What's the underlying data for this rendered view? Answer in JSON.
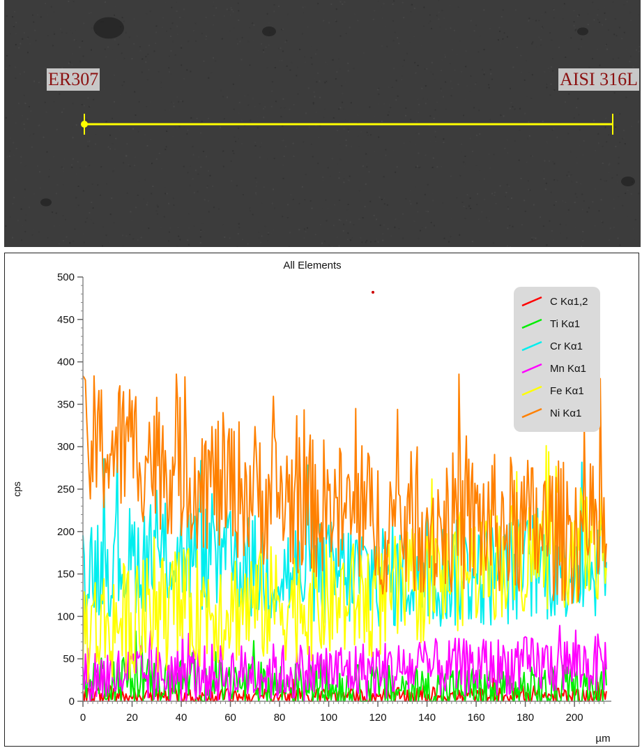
{
  "sem_image": {
    "left_label": "ER307",
    "right_label": "AISI 316L",
    "scan_line_color": "#ffff00"
  },
  "chart_data": {
    "type": "line",
    "title": "All Elements",
    "xlabel": "µm",
    "ylabel": "cps",
    "xlim": [
      0,
      215
    ],
    "ylim": [
      0,
      500
    ],
    "x_ticks": [
      0,
      20,
      40,
      60,
      80,
      100,
      120,
      140,
      160,
      180,
      200
    ],
    "y_ticks": [
      0,
      50,
      100,
      150,
      200,
      250,
      300,
      350,
      400,
      450,
      500
    ],
    "legend_position": "top-right",
    "grid": false,
    "x_step": 0.5,
    "series": [
      {
        "name": "C Kα1,2",
        "color": "#ff0000",
        "baseline": [
          [
            0,
            6
          ],
          [
            215,
            6
          ]
        ],
        "amplitude": 10
      },
      {
        "name": "Ti Kα1",
        "color": "#00ee00",
        "baseline": [
          [
            0,
            30
          ],
          [
            60,
            20
          ],
          [
            120,
            15
          ],
          [
            215,
            12
          ]
        ],
        "amplitude": 28
      },
      {
        "name": "Cr Kα1",
        "color": "#00eeee",
        "baseline": [
          [
            0,
            160
          ],
          [
            40,
            175
          ],
          [
            80,
            150
          ],
          [
            120,
            150
          ],
          [
            160,
            150
          ],
          [
            215,
            165
          ]
        ],
        "amplitude": 65
      },
      {
        "name": "Mn Kα1",
        "color": "#ff00ff",
        "baseline": [
          [
            0,
            30
          ],
          [
            100,
            35
          ],
          [
            215,
            45
          ]
        ],
        "amplitude": 35
      },
      {
        "name": "Fe Kα1",
        "color": "#ffff00",
        "baseline": [
          [
            0,
            85
          ],
          [
            40,
            110
          ],
          [
            80,
            115
          ],
          [
            120,
            120
          ],
          [
            160,
            160
          ],
          [
            215,
            190
          ]
        ],
        "amplitude": 70
      },
      {
        "name": "Ni Kα1",
        "color": "#ff8000",
        "baseline": [
          [
            0,
            300
          ],
          [
            20,
            300
          ],
          [
            50,
            260
          ],
          [
            80,
            240
          ],
          [
            120,
            210
          ],
          [
            160,
            210
          ],
          [
            215,
            195
          ]
        ],
        "amplitude": 85
      }
    ],
    "annotation_marker": {
      "x": 118,
      "y": 482,
      "color": "#cc0000"
    }
  }
}
